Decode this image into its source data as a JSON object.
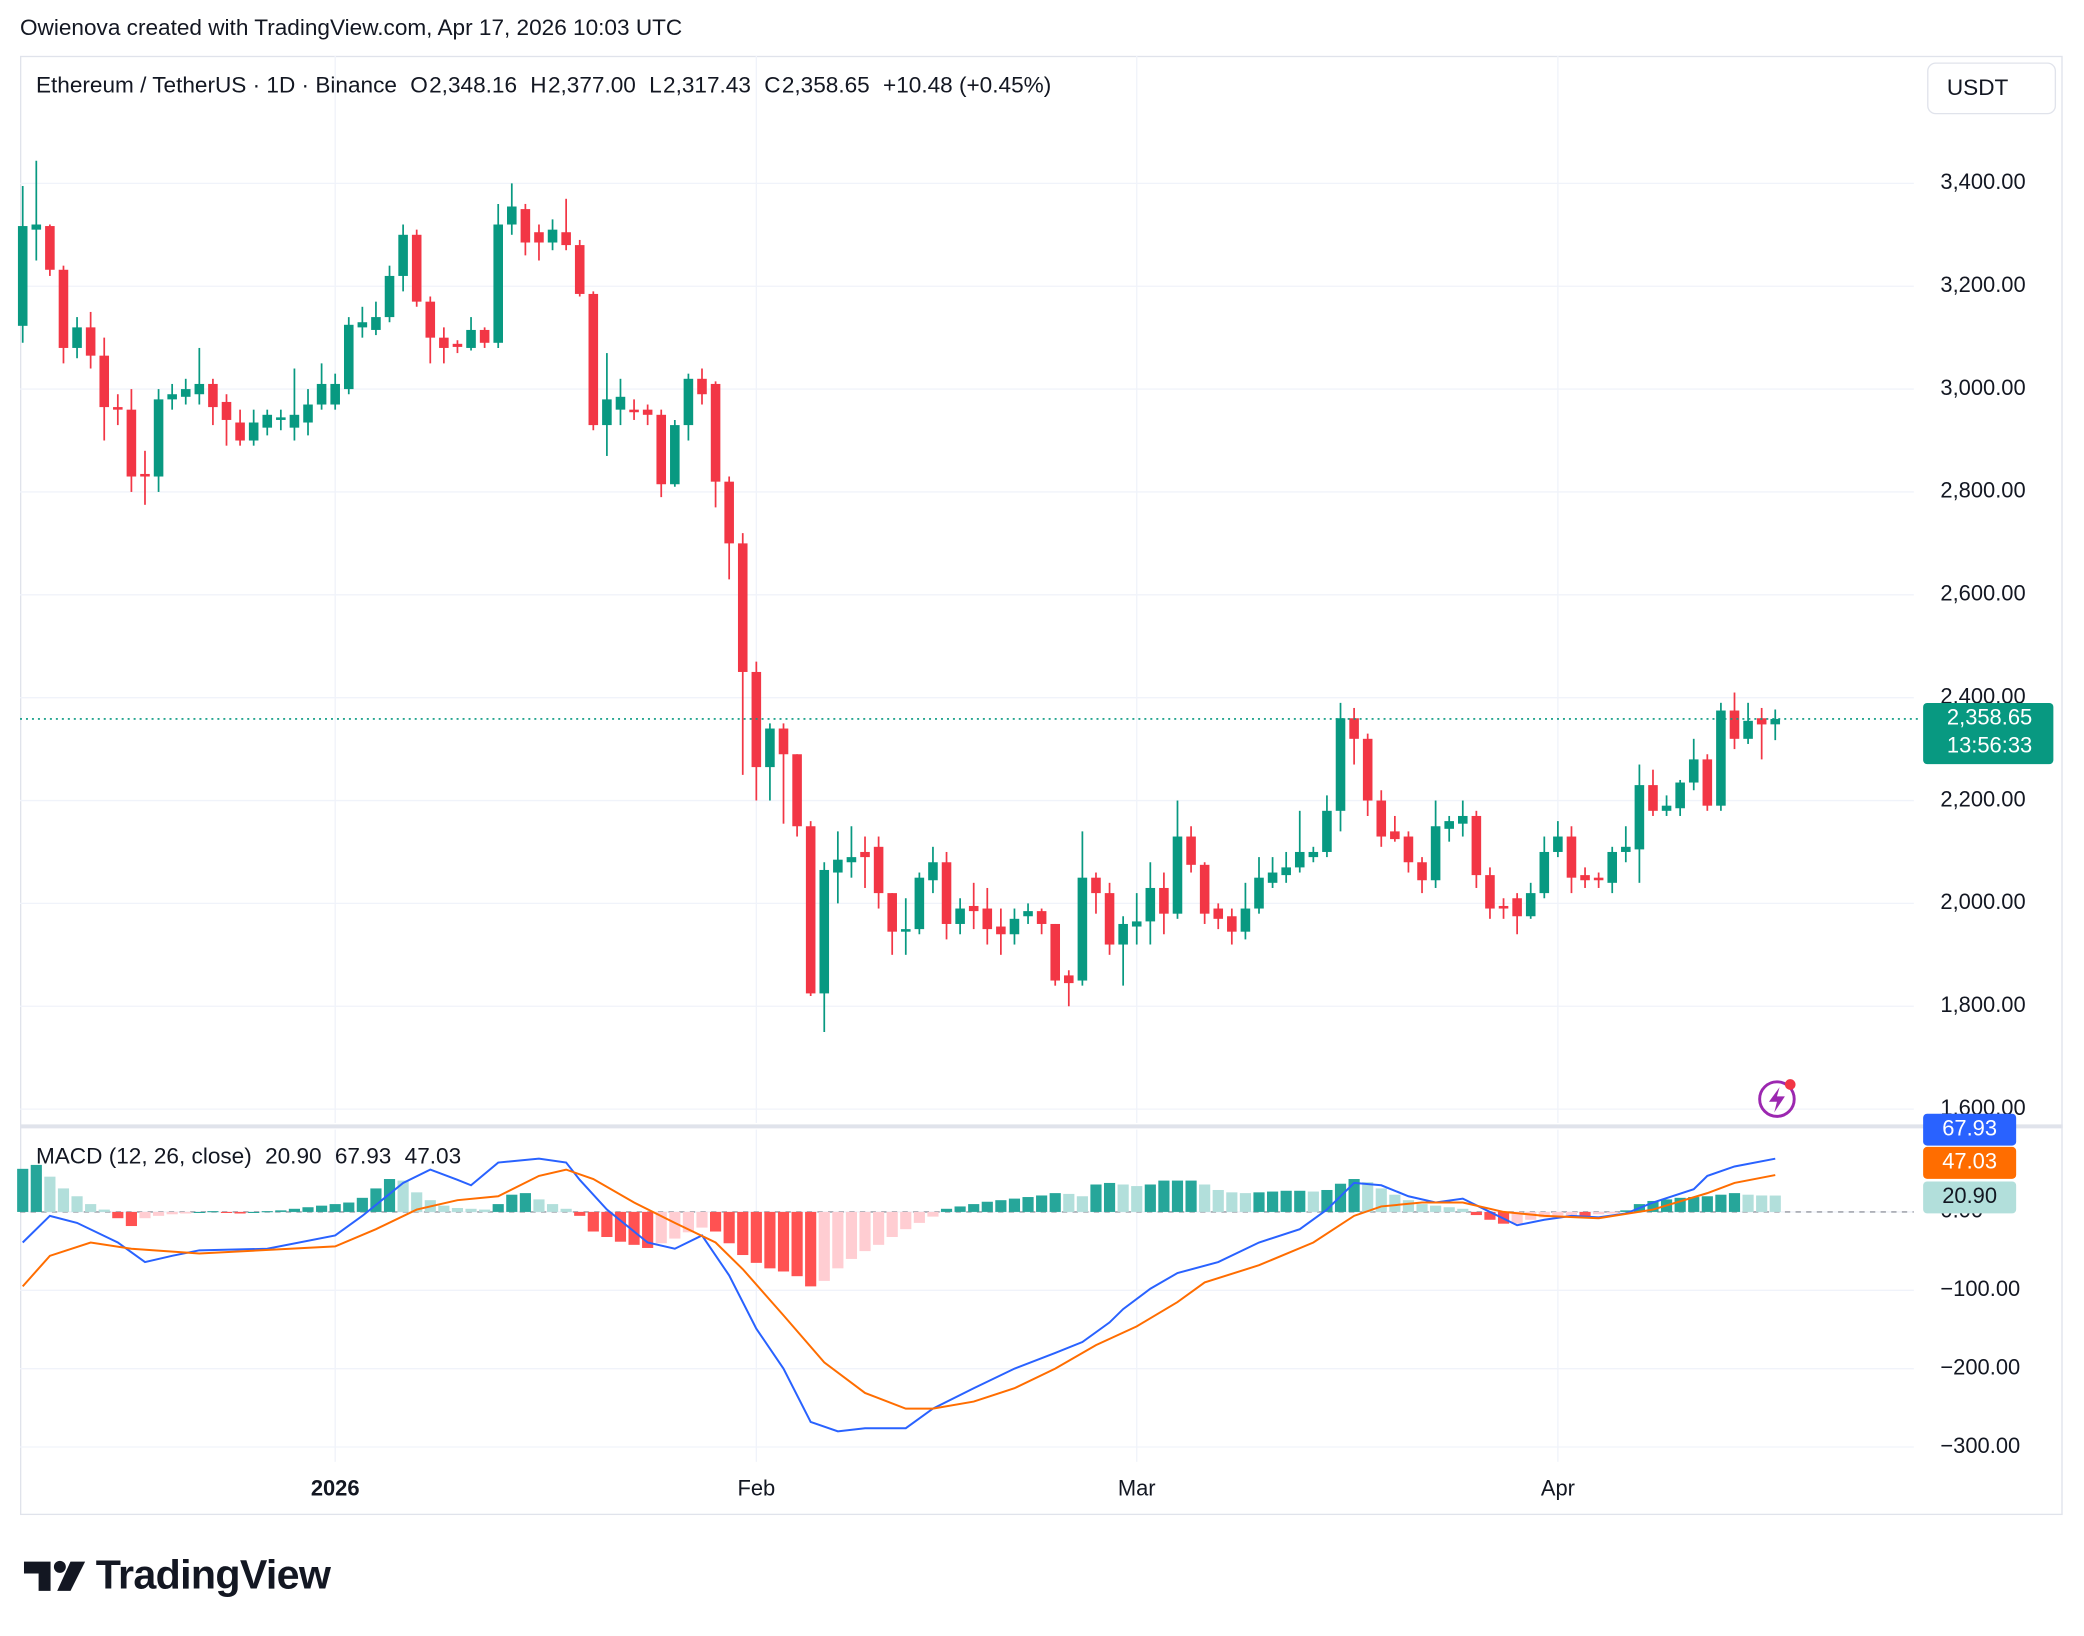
{
  "header": {
    "credit": "Owienova created with TradingView.com, Apr 17, 2026 10:03 UTC",
    "symbol": "Ethereum / TetherUS · 1D · Binance",
    "ohlc": [
      {
        "key": "O",
        "value": "2,348.16"
      },
      {
        "key": "H",
        "value": "2,377.00"
      },
      {
        "key": "L",
        "value": "2,317.43"
      },
      {
        "key": "C",
        "value": "2,358.65"
      }
    ],
    "change": "+10.48 (+0.45%)",
    "value_color": "#089981",
    "currency": "USDT"
  },
  "chart_data": [
    {
      "type": "candlestick",
      "up_color": "#089981",
      "down_color": "#f23645",
      "xlim": [
        -0.2,
        139.2
      ],
      "xticks": [
        {
          "value": 23,
          "label": "2026"
        },
        {
          "value": 54,
          "label": "Feb"
        },
        {
          "value": 82,
          "label": "Mar"
        },
        {
          "value": 113,
          "label": "Apr"
        }
      ],
      "ylim": [
        1573,
        3648
      ],
      "yticks": [
        {
          "value": 1600,
          "label": "1,600.00"
        },
        {
          "value": 1800,
          "label": "1,800.00"
        },
        {
          "value": 2000,
          "label": "2,000.00"
        },
        {
          "value": 2200,
          "label": "2,200.00"
        },
        {
          "value": 2400,
          "label": "2,400.00"
        },
        {
          "value": 2600,
          "label": "2,600.00"
        },
        {
          "value": 2800,
          "label": "2,800.00"
        },
        {
          "value": 3000,
          "label": "3,000.00"
        },
        {
          "value": 3200,
          "label": "3,200.00"
        },
        {
          "value": 3400,
          "label": "3,400.00"
        }
      ],
      "grid": true,
      "last_price_label": "2,358.65",
      "countdown": "13:56:33",
      "open": [
        3123,
        3310,
        3317,
        3232,
        3080,
        3120,
        3065,
        2965,
        2960,
        2835,
        2830,
        2980,
        2985,
        2990,
        3010,
        2975,
        2935,
        2900,
        2925,
        2940,
        2925,
        2935,
        2970,
        2970,
        3000,
        3120,
        3115,
        3140,
        3220,
        3300,
        3170,
        3100,
        3088,
        3080,
        3115,
        3090,
        3320,
        3350,
        3305,
        3285,
        3305,
        3280,
        3185,
        2930,
        2960,
        2960,
        2960,
        2950,
        2815,
        2930,
        3020,
        3010,
        2820,
        2700,
        2450,
        2265,
        2340,
        2290,
        2150,
        1825,
        2060,
        2080,
        2100,
        2110,
        2020,
        1945,
        1950,
        2045,
        2080,
        1960,
        1995,
        1990,
        1955,
        1940,
        1975,
        1985,
        1960,
        1860,
        1850,
        2050,
        2020,
        1920,
        1955,
        1965,
        2030,
        1980,
        2130,
        2075,
        1990,
        1975,
        1945,
        1990,
        2040,
        2055,
        2070,
        2090,
        2100,
        2180,
        2360,
        2320,
        2200,
        2140,
        2130,
        2080,
        2045,
        2145,
        2155,
        2170,
        2055,
        1995,
        2010,
        1975,
        2020,
        2100,
        2130,
        2055,
        2050,
        2040,
        2100,
        2105,
        2230,
        2180,
        2185,
        2235,
        2280,
        2190,
        2375,
        2320,
        2360,
        2348.16
      ],
      "high": [
        3395,
        3444,
        3320,
        3240,
        3140,
        3150,
        3100,
        2990,
        3000,
        2880,
        3000,
        3010,
        3020,
        3080,
        3020,
        2990,
        2960,
        2960,
        2960,
        2960,
        3040,
        3000,
        3050,
        3030,
        3140,
        3160,
        3170,
        3240,
        3320,
        3310,
        3180,
        3120,
        3095,
        3140,
        3120,
        3360,
        3400,
        3360,
        3320,
        3330,
        3370,
        3290,
        3190,
        3070,
        3020,
        2980,
        2970,
        2960,
        2940,
        3030,
        3040,
        3015,
        2830,
        2720,
        2470,
        2350,
        2350,
        2290,
        2160,
        2080,
        2140,
        2150,
        2130,
        2130,
        2020,
        2010,
        2060,
        2110,
        2100,
        2010,
        2040,
        2030,
        1990,
        1990,
        2000,
        1990,
        1960,
        1870,
        2140,
        2060,
        2040,
        1975,
        2020,
        2080,
        2060,
        2200,
        2150,
        2080,
        2000,
        1990,
        2040,
        2090,
        2090,
        2100,
        2180,
        2110,
        2210,
        2390,
        2380,
        2330,
        2220,
        2170,
        2140,
        2090,
        2200,
        2170,
        2200,
        2180,
        2070,
        2010,
        2020,
        2040,
        2130,
        2160,
        2150,
        2070,
        2060,
        2110,
        2150,
        2270,
        2260,
        2210,
        2240,
        2320,
        2290,
        2390,
        2410,
        2390,
        2380,
        2377
      ],
      "low": [
        3090,
        3250,
        3220,
        3050,
        3060,
        3040,
        2900,
        2930,
        2800,
        2775,
        2800,
        2960,
        2970,
        2970,
        2930,
        2890,
        2890,
        2890,
        2910,
        2920,
        2900,
        2910,
        2960,
        2960,
        2990,
        3100,
        3105,
        3130,
        3190,
        3160,
        3050,
        3050,
        3070,
        3075,
        3080,
        3080,
        3300,
        3260,
        3250,
        3270,
        3270,
        3180,
        2920,
        2870,
        2930,
        2940,
        2930,
        2790,
        2810,
        2900,
        2970,
        2770,
        2630,
        2250,
        2200,
        2200,
        2155,
        2130,
        1820,
        1750,
        2000,
        2050,
        2030,
        1990,
        1900,
        1900,
        1940,
        2020,
        1930,
        1940,
        1950,
        1920,
        1900,
        1920,
        1960,
        1940,
        1840,
        1800,
        1840,
        1980,
        1900,
        1840,
        1920,
        1920,
        1940,
        1970,
        2060,
        1960,
        1950,
        1920,
        1930,
        1980,
        2030,
        2040,
        2060,
        2080,
        2090,
        2140,
        2270,
        2170,
        2110,
        2120,
        2060,
        2020,
        2030,
        2120,
        2130,
        2030,
        1970,
        1970,
        1940,
        1970,
        2010,
        2090,
        2020,
        2030,
        2030,
        2020,
        2080,
        2040,
        2170,
        2170,
        2170,
        2220,
        2180,
        2180,
        2300,
        2310,
        2280,
        2317.43
      ],
      "close": [
        3317,
        3320,
        3232,
        3080,
        3120,
        3065,
        2965,
        2960,
        2830,
        2830,
        2980,
        2990,
        3000,
        3010,
        2965,
        2940,
        2900,
        2935,
        2950,
        2945,
        2950,
        2970,
        3010,
        3010,
        3125,
        3130,
        3140,
        3220,
        3300,
        3170,
        3100,
        3080,
        3082,
        3115,
        3090,
        3320,
        3355,
        3285,
        3285,
        3310,
        3280,
        3185,
        2930,
        2980,
        2985,
        2955,
        2950,
        2815,
        2930,
        3020,
        2990,
        2820,
        2700,
        2450,
        2265,
        2340,
        2290,
        2150,
        1825,
        2065,
        2085,
        2090,
        2090,
        2020,
        1945,
        1950,
        2050,
        2080,
        1960,
        1990,
        1985,
        1950,
        1940,
        1970,
        1985,
        1960,
        1850,
        1845,
        2050,
        2020,
        1920,
        1960,
        1965,
        2030,
        1980,
        2130,
        2075,
        1980,
        1970,
        1945,
        1990,
        2050,
        2060,
        2070,
        2100,
        2100,
        2180,
        2360,
        2320,
        2200,
        2130,
        2125,
        2080,
        2045,
        2150,
        2160,
        2170,
        2055,
        1990,
        1990,
        1975,
        2020,
        2100,
        2130,
        2050,
        2045,
        2045,
        2100,
        2110,
        2230,
        2180,
        2190,
        2235,
        2280,
        2190,
        2375,
        2320,
        2355,
        2348,
        2358.65
      ]
    },
    {
      "type": "macd",
      "title": "MACD (12, 26, close)",
      "xlim": [
        -0.2,
        139.2
      ],
      "ylim": [
        -319,
        105
      ],
      "yticks": [
        {
          "value": 0,
          "label": "0.00"
        },
        {
          "value": -100,
          "label": "−100.00"
        },
        {
          "value": -200,
          "label": "−200.00"
        },
        {
          "value": -300,
          "label": "−300.00"
        }
      ],
      "grid": true,
      "histogram": {
        "last_label": "20.90",
        "colors": {
          "rising_above": "#26a69a",
          "falling_above": "#b2dfdb",
          "falling_below": "#ff5252",
          "rising_below": "#ffcdd2"
        },
        "label_color": "#9fd6d0",
        "values": [
          55,
          60,
          45,
          30,
          20,
          10,
          3,
          -8,
          -18,
          -8,
          -5,
          -3,
          -2,
          0,
          1,
          -1,
          -2,
          0,
          1,
          2,
          4,
          6,
          8,
          10,
          12,
          18,
          30,
          42,
          40,
          25,
          15,
          8,
          5,
          4,
          3,
          10,
          22,
          24,
          16,
          10,
          4,
          -5,
          -25,
          -32,
          -38,
          -42,
          -46,
          -40,
          -34,
          -26,
          -20,
          -25,
          -40,
          -55,
          -65,
          -72,
          -76,
          -82,
          -95,
          -88,
          -72,
          -60,
          -50,
          -42,
          -32,
          -22,
          -14,
          -6,
          4,
          7,
          10,
          13,
          15,
          17,
          19,
          21,
          24,
          23,
          20,
          35,
          37,
          35,
          33,
          35,
          40,
          40,
          40,
          35,
          28,
          25,
          24,
          25,
          26,
          27,
          27,
          26,
          28,
          36,
          42,
          38,
          30,
          22,
          15,
          10,
          8,
          6,
          4,
          -4,
          -10,
          -15,
          -15,
          -10,
          -7,
          -5,
          -5,
          -6,
          -3,
          -2,
          2,
          10,
          14,
          16,
          18,
          19,
          20,
          22,
          24,
          22,
          21,
          20.9
        ]
      },
      "macd": {
        "color": "#2962ff",
        "last_label": "67.93",
        "x": [
          0,
          2,
          4,
          7,
          9,
          11,
          13,
          18,
          23,
          25,
          28,
          30,
          32,
          33,
          35,
          38,
          40,
          41,
          43,
          46,
          48,
          50,
          52,
          54,
          56,
          58,
          60,
          62,
          65,
          67,
          70,
          73,
          76,
          78,
          80,
          81,
          83,
          85,
          88,
          91,
          94,
          96,
          98,
          100,
          102,
          104,
          106,
          108,
          110,
          112,
          114,
          116,
          118,
          120,
          123,
          124,
          126,
          129
        ],
        "values": [
          -39,
          -5,
          -14,
          -39,
          -64,
          -56,
          -49,
          -47,
          -30,
          -5,
          37,
          54,
          41,
          34,
          63,
          68,
          63,
          41,
          3,
          -39,
          -47,
          -30,
          -81,
          -149,
          -200,
          -268,
          -280,
          -276,
          -276,
          -251,
          -225,
          -200,
          -180,
          -166,
          -141,
          -124,
          -98,
          -78,
          -64,
          -39,
          -22,
          3,
          37,
          34,
          20,
          12,
          17,
          0,
          -17,
          -10,
          -5,
          -7,
          -2,
          12,
          29,
          46,
          58,
          67.93
        ]
      },
      "signal": {
        "color": "#ff6d00",
        "last_label": "47.03",
        "x": [
          0,
          2,
          5,
          8,
          13,
          23,
          26,
          29,
          32,
          35,
          38,
          40,
          42,
          45,
          48,
          51,
          53,
          56,
          59,
          62,
          65,
          67,
          70,
          73,
          76,
          79,
          82,
          85,
          87,
          91,
          95,
          98,
          100,
          103,
          106,
          109,
          112,
          116,
          120,
          124,
          126,
          129
        ],
        "values": [
          -95,
          -56,
          -39,
          -47,
          -53,
          -44,
          -22,
          3,
          15,
          20,
          46,
          54,
          42,
          12,
          -14,
          -39,
          -73,
          -132,
          -192,
          -231,
          -251,
          -251,
          -242,
          -225,
          -200,
          -170,
          -146,
          -115,
          -90,
          -68,
          -39,
          -5,
          7,
          12,
          12,
          0,
          -5,
          -8,
          3,
          24,
          37,
          47.03
        ]
      }
    }
  ],
  "footer": {
    "brand": "TradingView"
  }
}
